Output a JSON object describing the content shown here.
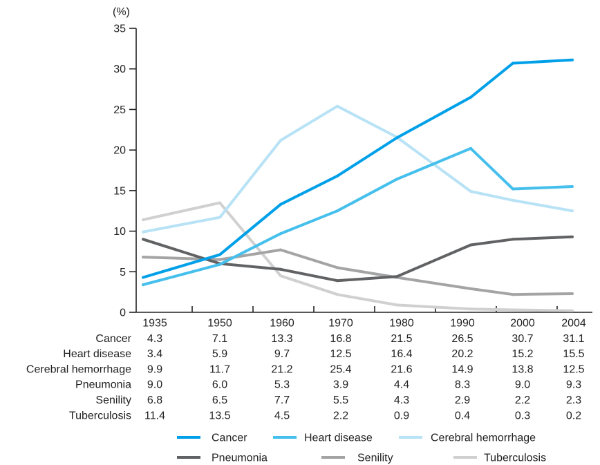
{
  "chart_data": {
    "type": "line",
    "ylabel": "(%)",
    "categories": [
      "1935",
      "1950",
      "1960",
      "1970",
      "1980",
      "1990",
      "2000",
      "2004"
    ],
    "ylim": [
      0,
      35
    ],
    "yticks": [
      0,
      5,
      10,
      15,
      20,
      25,
      30,
      35
    ],
    "grid": false,
    "legend": "bottom",
    "series": [
      {
        "name": "Cancer",
        "color": "#00a0e9",
        "values": [
          4.3,
          7.1,
          13.3,
          16.8,
          21.5,
          26.5,
          30.7,
          31.1
        ]
      },
      {
        "name": "Heart disease",
        "color": "#45bfec",
        "values": [
          3.4,
          5.9,
          9.7,
          12.5,
          16.4,
          20.2,
          15.2,
          15.5
        ]
      },
      {
        "name": "Cerebral hemorrhage",
        "color": "#b8e2f5",
        "values": [
          9.9,
          11.7,
          21.2,
          25.4,
          21.6,
          14.9,
          13.8,
          12.5
        ]
      },
      {
        "name": "Pneumonia",
        "color": "#616264",
        "values": [
          9.0,
          6.0,
          5.3,
          3.9,
          4.4,
          8.3,
          9.0,
          9.3
        ]
      },
      {
        "name": "Senility",
        "color": "#a4a4a4",
        "values": [
          6.8,
          6.5,
          7.7,
          5.5,
          4.3,
          2.9,
          2.2,
          2.3
        ]
      },
      {
        "name": "Tuberculosis",
        "color": "#d0d0d0",
        "values": [
          11.4,
          13.5,
          4.5,
          2.2,
          0.9,
          0.4,
          0.3,
          0.2
        ]
      }
    ]
  }
}
